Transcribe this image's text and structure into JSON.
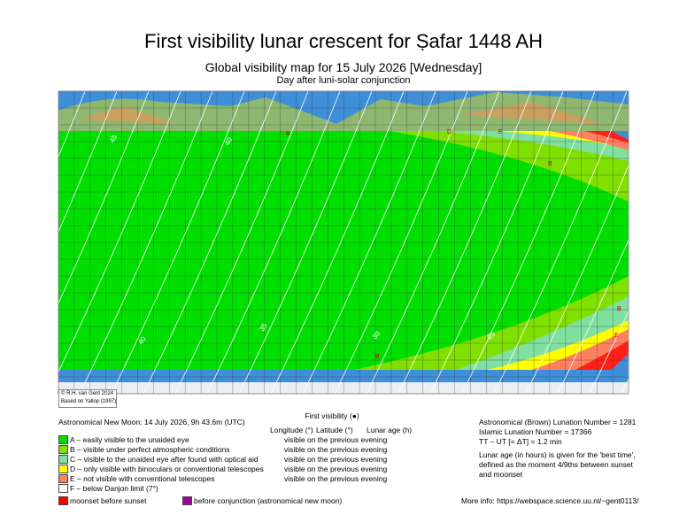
{
  "header": {
    "title": "First visibility lunar crescent for Ṣafar 1448 AH",
    "subtitle": "Global visibility map for 15 July 2026 [Wednesday]",
    "note": "Day after luni-solar conjunction"
  },
  "map": {
    "copyright": "© R.H. van Gent 2024",
    "credit": "Based on Yallop (1997)",
    "contour_labels": [
      "45",
      "40",
      "40",
      "35",
      "30",
      "25"
    ],
    "zone_labels": [
      "B",
      "D",
      "E",
      "B",
      "B",
      "E",
      "B"
    ]
  },
  "legend": {
    "new_moon": "Astronomical New Moon: 14 July 2026, 9h 43.6m (UTC)",
    "first_visibility": "First visibility (●)",
    "columns": [
      "Longitude (°)",
      "Latitude (°)",
      "Lunar age (h)"
    ],
    "zones": [
      {
        "label": "A – easily visible to the unaided eye",
        "color": "#00e000",
        "visibility": "visible on the previous evening"
      },
      {
        "label": "B – visible under perfect atmospheric conditions",
        "color": "#80e000",
        "visibility": "visible on the previous evening"
      },
      {
        "label": "C – visible to the unaided eye after found with optical aid",
        "color": "#80e0a0",
        "visibility": "visible on the previous evening"
      },
      {
        "label": "D – only visible with binoculars or conventional telescopes",
        "color": "#ffff00",
        "visibility": "visible on the previous evening"
      },
      {
        "label": "E – not visible with conventional telescopes",
        "color": "#ff8060",
        "visibility": "visible on the previous evening"
      },
      {
        "label": "F – below Danjon limit (7°)",
        "color": "#ffffff"
      }
    ],
    "moonset": {
      "label": "moonset before sunset",
      "color": "#ff0000"
    },
    "before_conjunction": {
      "label": "before conjunction (astronomical new moon)",
      "color": "#a000a0"
    }
  },
  "info": {
    "brown": "Astronomical (Brown) Lunation Number = 1281",
    "islamic": "Islamic Lunation Number = 17366",
    "delta_t": "TT – UT [= ΔT] = 1.2 min",
    "age_note": [
      "Lunar age (in hours) is given for the 'best time',",
      "defined as the moment 4/9ths between sunset",
      "and moonset"
    ],
    "more": "More info: https://webspace.science.uu.nl/~gent0113/"
  }
}
